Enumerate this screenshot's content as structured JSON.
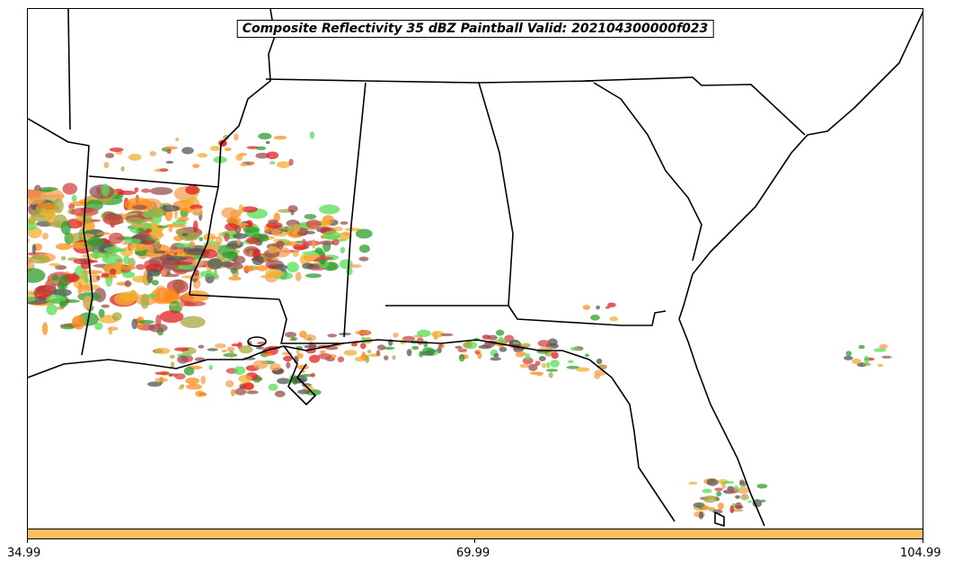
{
  "title": "Composite Reflectivity 35 dBZ Paintball Valid: 202104300000f023",
  "colorbar": {
    "color": "#fdbf5e",
    "ticks": [
      "34.99",
      "69.99",
      "104.99"
    ]
  },
  "map": {
    "region": "southeastern-united-states",
    "coastline_color": "#000000",
    "paintball_colors": [
      "#ff8c1a",
      "#f4a155",
      "#e02020",
      "#d14545",
      "#2e9e2e",
      "#55dd55",
      "#a8a840",
      "#9a5050",
      "#555555",
      "#f0b030"
    ]
  }
}
